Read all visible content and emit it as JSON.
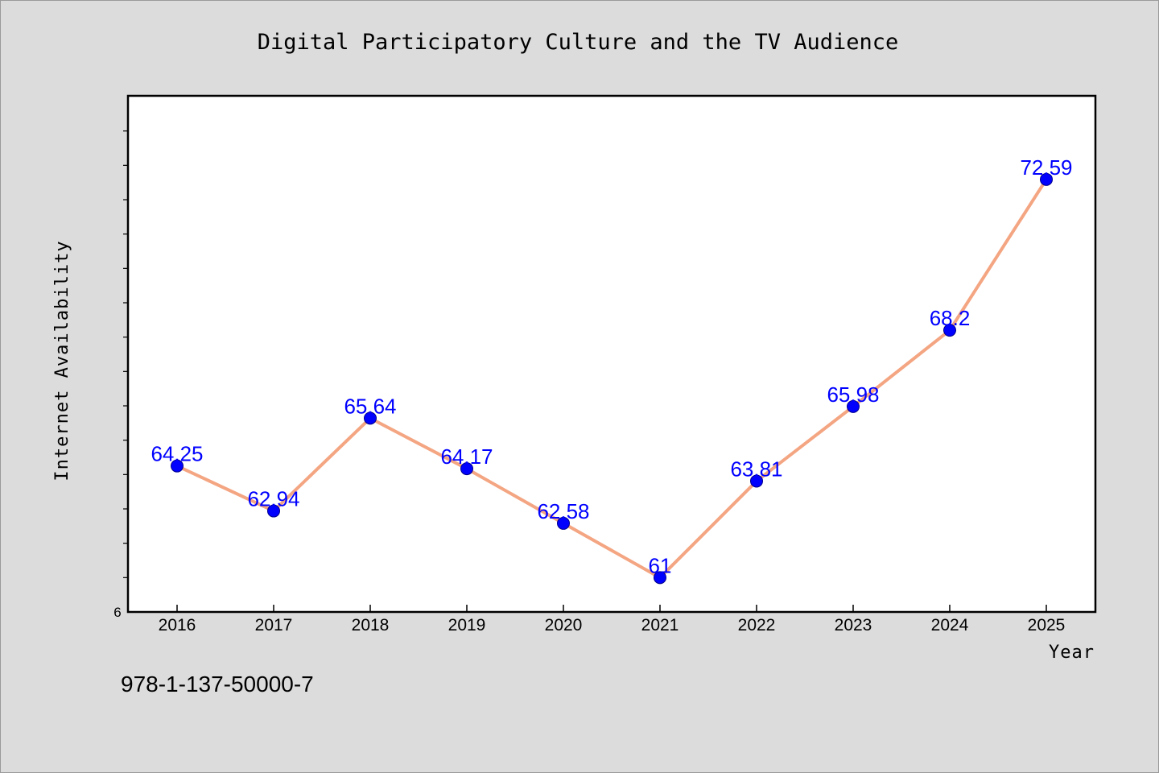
{
  "chart_data": {
    "type": "line",
    "title": "Digital Participatory Culture and the TV Audience",
    "xlabel": "Year",
    "ylabel": "Internet Availability",
    "categories": [
      "2016",
      "2017",
      "2018",
      "2019",
      "2020",
      "2021",
      "2022",
      "2023",
      "2024",
      "2025"
    ],
    "series": [
      {
        "values": [
          64.25,
          62.94,
          65.64,
          64.17,
          62.58,
          61,
          63.81,
          65.98,
          68.2,
          72.59
        ]
      }
    ],
    "data_labels": [
      "64.25",
      "62.94",
      "65.64",
      "64.17",
      "62.58",
      "61",
      "63.81",
      "65.98",
      "68.2",
      "72.59"
    ],
    "y_tick_label": "6",
    "ylim": [
      60.0,
      75.0
    ],
    "line_color": "#f4a582",
    "marker_color": "#0000ff",
    "label_color": "#0000ff",
    "grid": false,
    "legend": "none"
  },
  "isbn": "978-1-137-50000-7"
}
